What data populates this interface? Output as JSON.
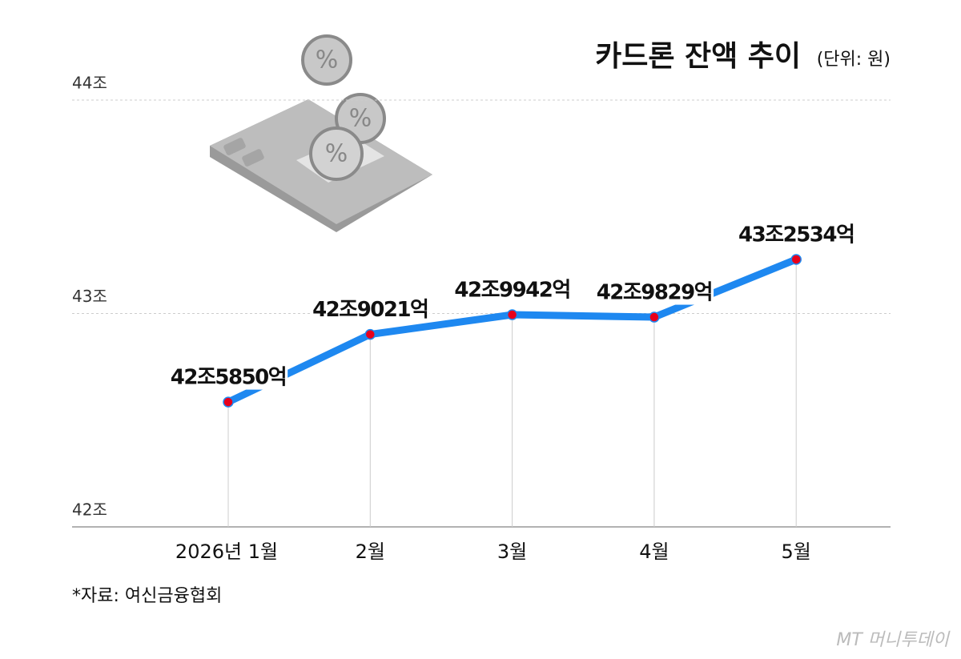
{
  "chart_data": {
    "type": "line",
    "title": "카드론 잔액 추이",
    "unit_note": "(단위: 원)",
    "source": "*자료: 여신금융협회",
    "watermark": "MT 머니투데이",
    "categories": [
      "2026년 1월",
      "2월",
      "3월",
      "4월",
      "5월"
    ],
    "series": [
      {
        "name": "카드론 잔액",
        "color": "#1e88f0",
        "values": [
          42.585,
          42.9021,
          42.9942,
          42.9829,
          43.2534
        ],
        "value_labels": [
          "42조5850억",
          "42조9021억",
          "42조9942억",
          "42조9829억",
          "43조2534억"
        ]
      }
    ],
    "marker_color": "#e8001c",
    "ylim": [
      42,
      44
    ],
    "yticks": [
      {
        "value": 42,
        "label": "42조"
      },
      {
        "value": 43,
        "label": "43조"
      },
      {
        "value": 44,
        "label": "44조"
      }
    ],
    "grid": true
  }
}
